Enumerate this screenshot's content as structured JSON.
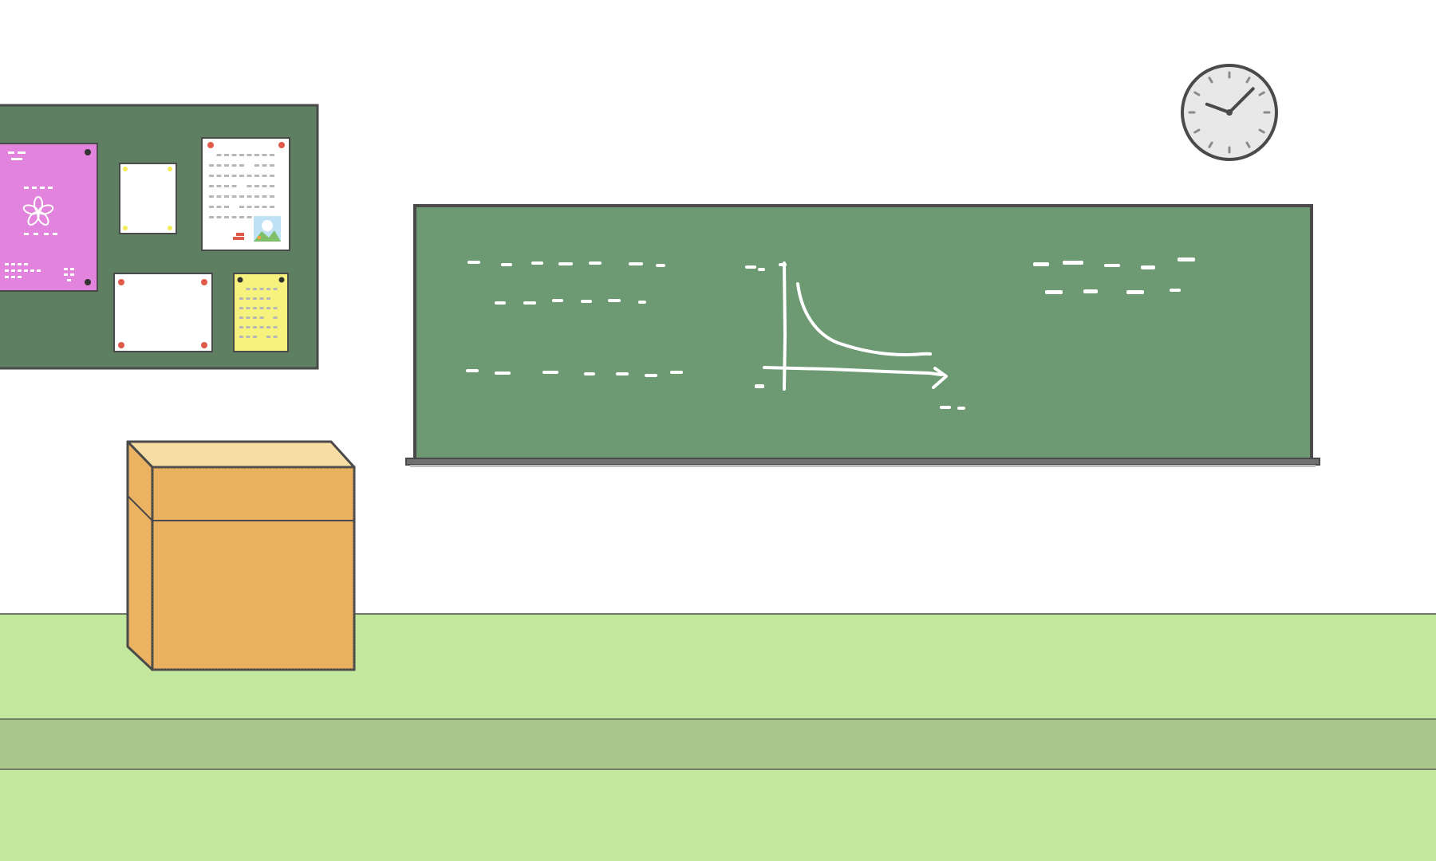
{
  "scene": {
    "name": "classroom",
    "colors": {
      "wall": "#ffffff",
      "floor": "#c3e79c",
      "floor_stripe": "#a9c78a",
      "outline": "#4a4a4a",
      "corkboard": "#5f7f62",
      "chalkboard": "#6d9a72",
      "chalk": "#ffffff",
      "podium_top": "#f8dea4",
      "podium_front": "#ebb261",
      "clock_face": "#e8e8e8",
      "poster_pink": "#e283dd",
      "note_yellow": "#f7f17e",
      "pin_red": "#e05a4a",
      "pin_dark": "#333333",
      "pin_yellow": "#f4ec5a"
    },
    "clock": {
      "hour_hand_angle_deg": -70,
      "minute_hand_angle_deg": 45
    }
  },
  "icons": {
    "clock": "wall-clock-icon",
    "flower": "flower-icon",
    "photo": "landscape-photo-icon"
  }
}
